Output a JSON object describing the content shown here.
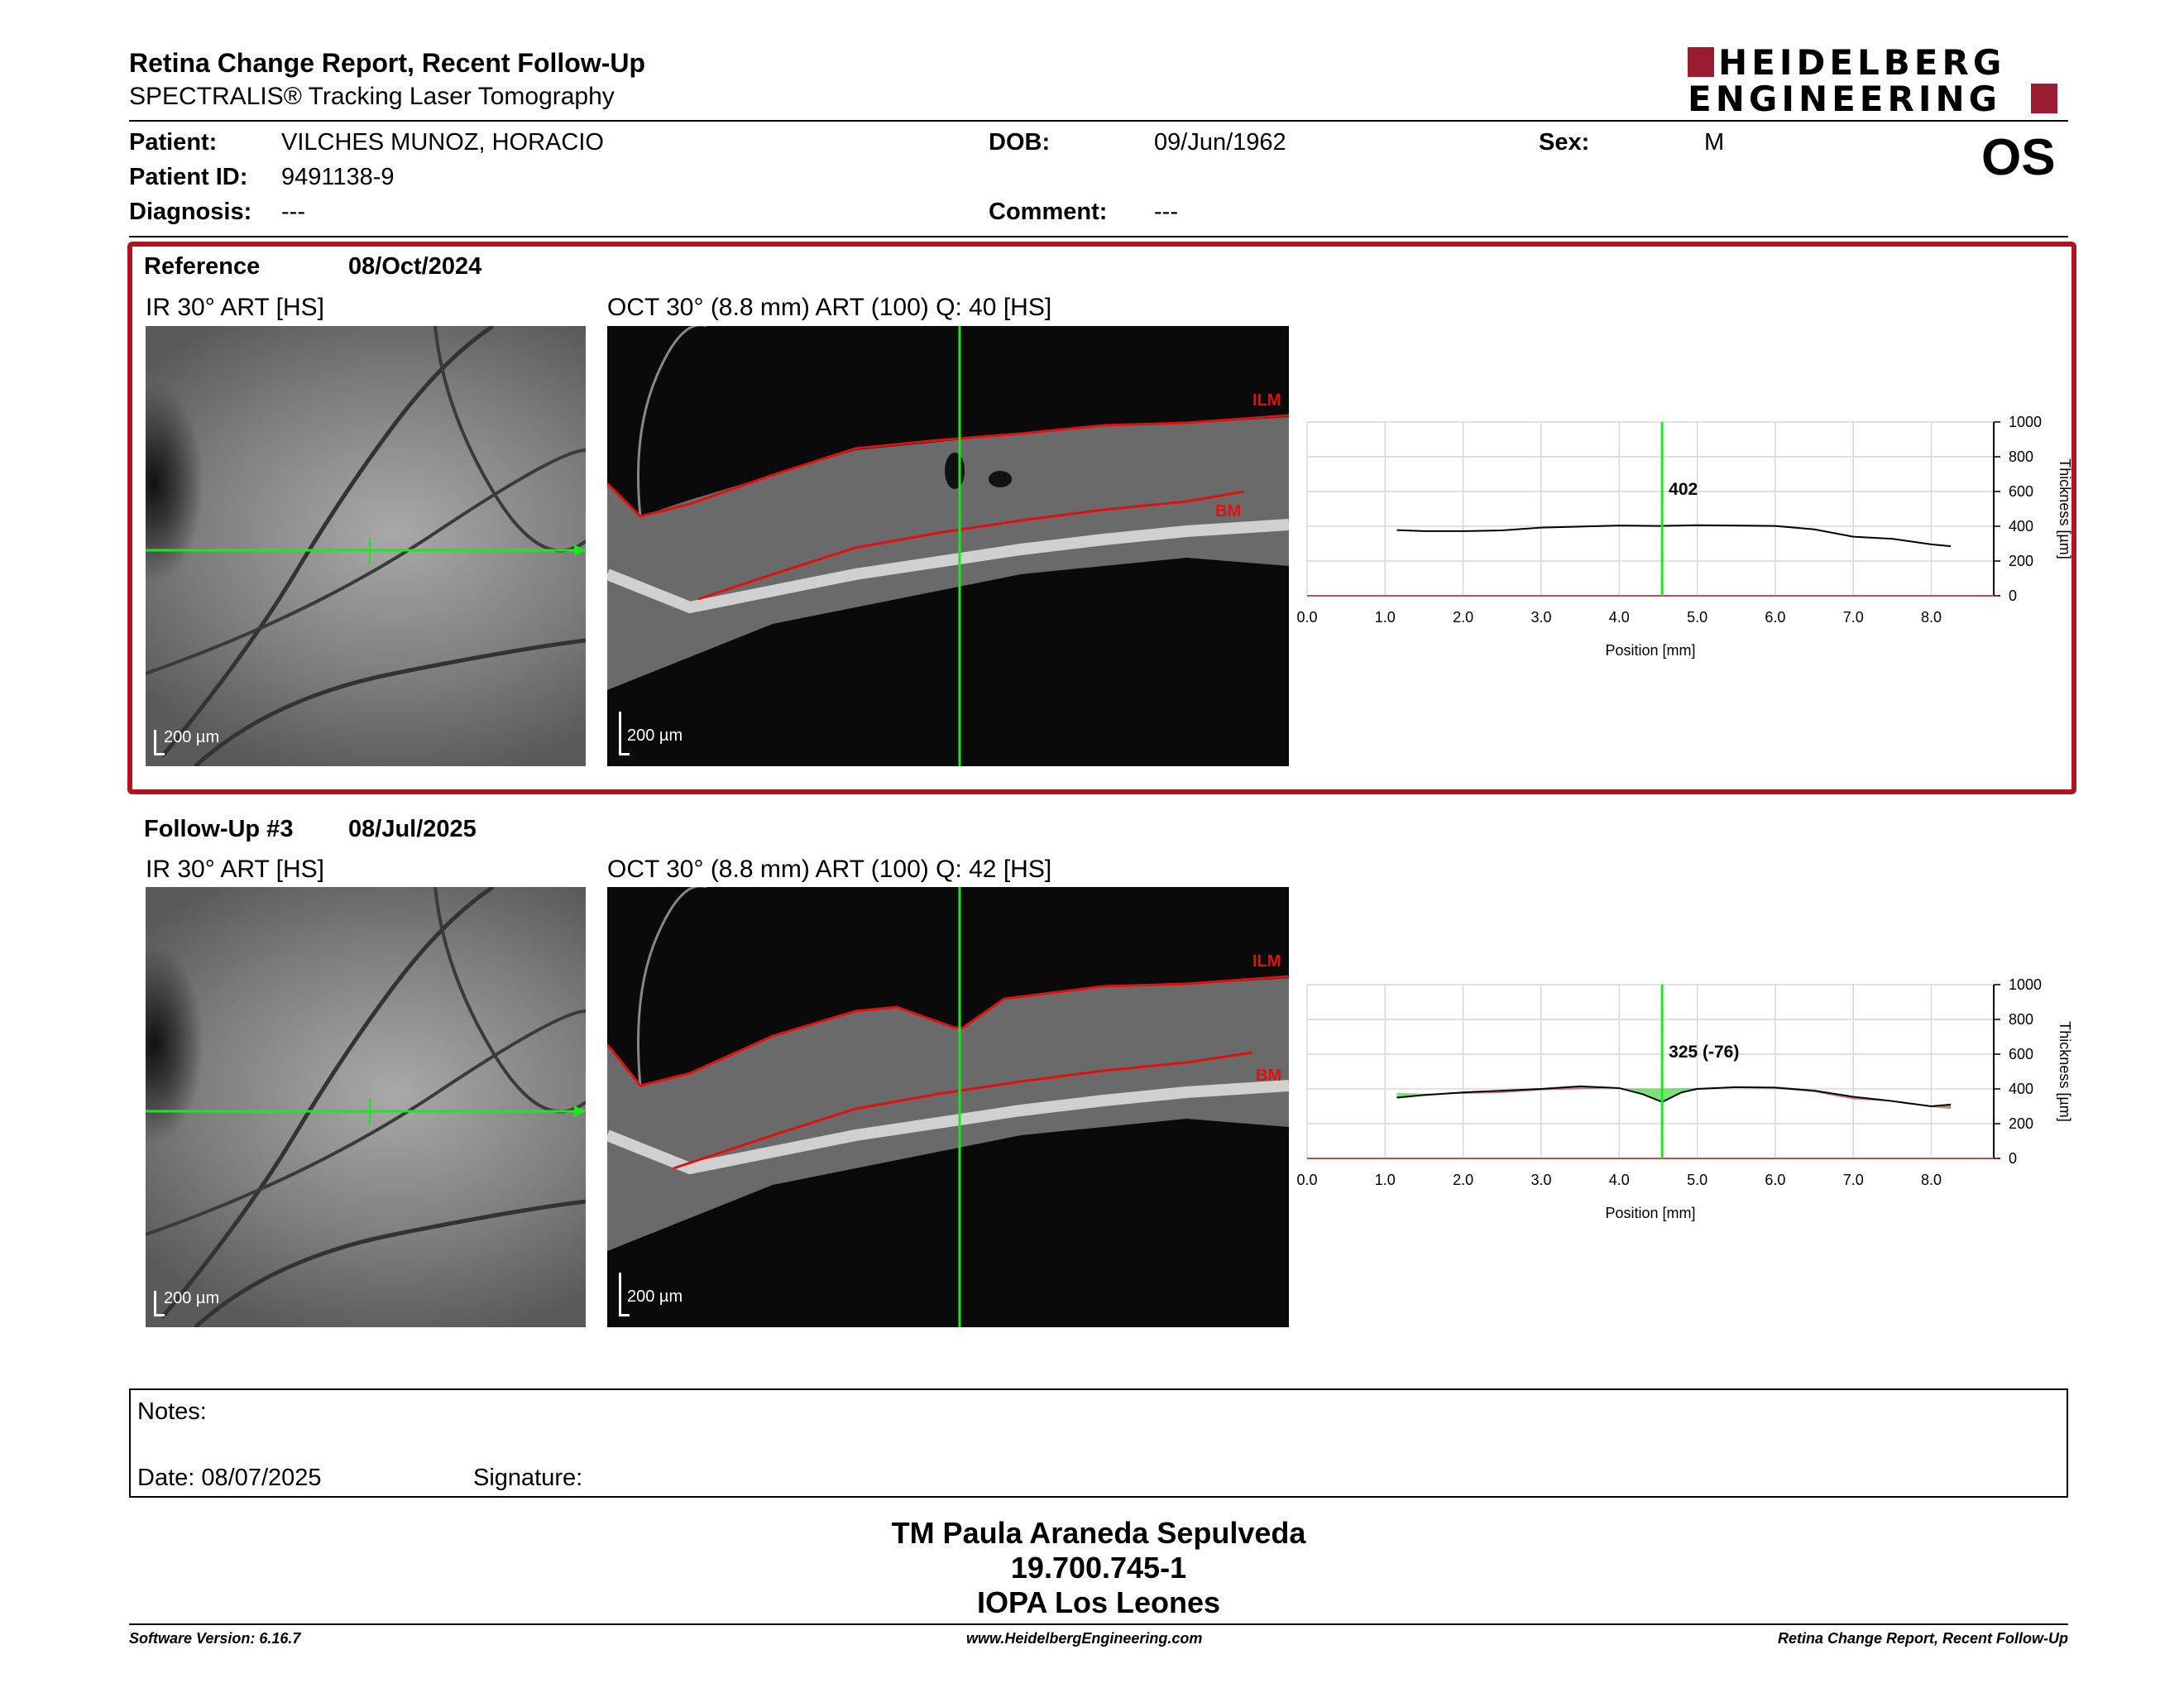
{
  "header": {
    "title": "Retina Change Report, Recent Follow-Up",
    "subtitle": "SPECTRALIS® Tracking Laser Tomography",
    "logo_line1": "HEIDELBERG",
    "logo_line2": "ENGINEERING",
    "eye": "OS"
  },
  "patient": {
    "patient_label": "Patient:",
    "patient_value": "VILCHES MUNOZ, HORACIO",
    "id_label": "Patient ID:",
    "id_value": "9491138-9",
    "diagnosis_label": "Diagnosis:",
    "diagnosis_value": "---",
    "dob_label": "DOB:",
    "dob_value": "09/Jun/1962",
    "comment_label": "Comment:",
    "comment_value": "---",
    "sex_label": "Sex:",
    "sex_value": "M"
  },
  "reference": {
    "label": "Reference",
    "date": "08/Oct/2024",
    "ir_title": "IR 30° ART [HS]",
    "oct_title": "OCT 30° (8.8 mm) ART (100) Q: 40 [HS]",
    "scale": "200 µm",
    "ilm": "ILM",
    "bm": "BM"
  },
  "followup": {
    "label": "Follow-Up #3",
    "date": "08/Jul/2025",
    "ir_title": "IR 30° ART [HS]",
    "oct_title": "OCT 30° (8.8 mm) ART (100) Q: 42 [HS]",
    "scale": "200 µm",
    "ilm": "ILM",
    "bm": "BM"
  },
  "chart_data": [
    {
      "type": "line",
      "xlabel": "Position [mm]",
      "ylabel": "Thickness [µm]",
      "xlim": [
        0,
        8.8
      ],
      "ylim": [
        0,
        1000
      ],
      "x_ticks": [
        "0.0",
        "1.0",
        "2.0",
        "3.0",
        "4.0",
        "5.0",
        "6.0",
        "7.0",
        "8.0"
      ],
      "y_ticks": [
        "0",
        "200",
        "400",
        "600",
        "800",
        "1000"
      ],
      "cursor_x": 4.55,
      "cursor_label": "402",
      "series": [
        {
          "x": [
            1.15,
            1.5,
            2.0,
            2.5,
            3.0,
            3.5,
            4.0,
            4.5,
            5.0,
            5.5,
            6.0,
            6.5,
            7.0,
            7.5,
            8.0,
            8.25
          ],
          "values": [
            378,
            372,
            372,
            376,
            392,
            398,
            404,
            402,
            406,
            404,
            402,
            382,
            340,
            328,
            296,
            285
          ]
        }
      ]
    },
    {
      "type": "area",
      "xlabel": "Position [mm]",
      "ylabel": "Thickness [µm]",
      "xlim": [
        0,
        8.8
      ],
      "ylim": [
        0,
        1000
      ],
      "x_ticks": [
        "0.0",
        "1.0",
        "2.0",
        "3.0",
        "4.0",
        "5.0",
        "6.0",
        "7.0",
        "8.0"
      ],
      "y_ticks": [
        "0",
        "200",
        "400",
        "600",
        "800",
        "1000"
      ],
      "cursor_x": 4.55,
      "cursor_label": "325 (-76)",
      "series": [
        {
          "x": [
            1.15,
            1.5,
            2.0,
            2.5,
            3.0,
            3.5,
            4.0,
            4.3,
            4.55,
            4.8,
            5.0,
            5.5,
            6.0,
            6.5,
            7.0,
            7.5,
            8.0,
            8.25
          ],
          "values": [
            350,
            365,
            380,
            390,
            400,
            415,
            405,
            370,
            325,
            380,
            400,
            410,
            408,
            390,
            355,
            330,
            300,
            310
          ]
        },
        {
          "x": [
            1.15,
            1.5,
            2.0,
            2.5,
            3.0,
            3.5,
            4.0,
            4.3,
            4.55,
            4.8,
            5.0,
            5.5,
            6.0,
            6.5,
            7.0,
            7.5,
            8.0,
            8.25
          ],
          "values": [
            378,
            372,
            372,
            376,
            392,
            398,
            404,
            403,
            402,
            404,
            406,
            404,
            402,
            382,
            340,
            328,
            296,
            285
          ]
        }
      ],
      "colors": {
        "increase": "#c0504d",
        "decrease": "#4cd94c"
      }
    }
  ],
  "notes": {
    "notes_label": "Notes:",
    "date_label": "Date: 08/07/2025",
    "signature_label": "Signature:"
  },
  "operator": {
    "name": "TM Paula Araneda Sepulveda",
    "rut": "19.700.745-1",
    "clinic": "IOPA Los Leones"
  },
  "footer": {
    "version": "Software Version: 6.16.7",
    "website": "www.HeidelbergEngineering.com",
    "report": "Retina Change Report, Recent Follow-Up"
  }
}
